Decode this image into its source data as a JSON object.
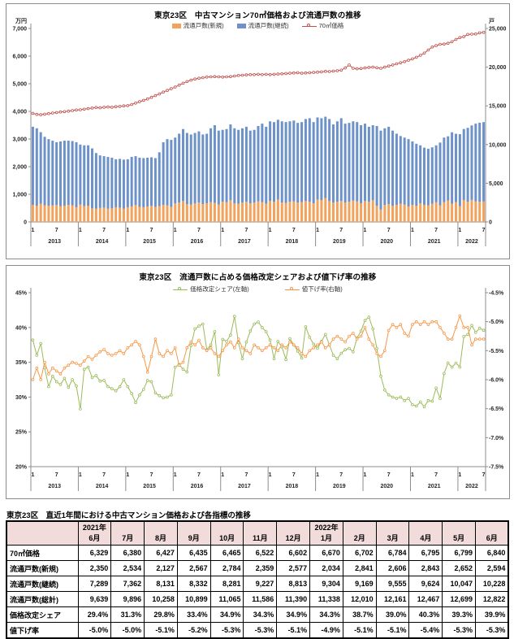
{
  "chart_data": [
    {
      "type": "bar+line",
      "title": "東京23区　中古マンション70㎡価格および流通戸数の推移",
      "grid": false,
      "legend_position": "top",
      "x": {
        "years": [
          "2013",
          "2014",
          "2015",
          "2016",
          "2017",
          "2018",
          "2019",
          "2020",
          "2021",
          "2022"
        ],
        "months_per_year": [
          12,
          12,
          12,
          12,
          12,
          12,
          12,
          12,
          12,
          7
        ],
        "month_tick_labels": [
          "1",
          "7"
        ]
      },
      "left_axis": {
        "title": "万円",
        "min": 0,
        "max": 7000,
        "step": 1000,
        "format": "thousands"
      },
      "right_axis": {
        "title": "戸",
        "min": 0,
        "max": 25000,
        "step": 5000,
        "format": "thousands"
      },
      "series": [
        {
          "name": "流通戸数(新規)",
          "type": "bar",
          "axis": "right",
          "color": "#F2A25B",
          "values": [
            2200,
            2100,
            2350,
            2150,
            2100,
            2150,
            2200,
            2050,
            2100,
            2200,
            2150,
            1900,
            2250,
            2050,
            2100,
            1750,
            1700,
            1800,
            1850,
            1700,
            1750,
            1900,
            1850,
            1700,
            1900,
            2000,
            2200,
            1950,
            1900,
            2000,
            2100,
            1950,
            2050,
            2200,
            2150,
            1950,
            2400,
            2500,
            2700,
            2300,
            2250,
            2400,
            2500,
            2300,
            2400,
            2550,
            2450,
            2250,
            2600,
            2550,
            2800,
            2400,
            2350,
            2500,
            2600,
            2400,
            2500,
            2650,
            2550,
            2350,
            2700,
            2600,
            2900,
            2500,
            2450,
            2600,
            2650,
            2500,
            2550,
            2700,
            2600,
            2400,
            2900,
            2800,
            3100,
            2700,
            2500,
            2600,
            2700,
            2500,
            2600,
            2750,
            2650,
            2400,
            2700,
            2600,
            2800,
            2100,
            1600,
            2200,
            2300,
            2100,
            2200,
            2350,
            2250,
            2000,
            2200,
            2100,
            2400,
            2200,
            2150,
            2350,
            2534,
            2127,
            2567,
            2784,
            2359,
            2577,
            2034,
            2841,
            2606,
            2843,
            2652,
            2594,
            2650
          ]
        },
        {
          "name": "流通戸数(継続)",
          "type": "bar",
          "axis": "right",
          "color": "#6D91C9",
          "values": [
            10100,
            10000,
            9250,
            8850,
            8600,
            8350,
            8100,
            8350,
            8400,
            8300,
            8300,
            8400,
            7750,
            7850,
            7800,
            7750,
            7200,
            6800,
            6650,
            6700,
            6550,
            6200,
            6300,
            6350,
            6200,
            6400,
            6300,
            6350,
            6350,
            6300,
            6250,
            6300,
            6950,
            8100,
            8550,
            8650,
            8500,
            8900,
            9300,
            9200,
            9050,
            9100,
            9200,
            9000,
            9000,
            9550,
            10050,
            9550,
            9300,
            9450,
            9800,
            9700,
            9550,
            9600,
            9700,
            9400,
            9400,
            9750,
            10150,
            9950,
            10300,
            10300,
            10300,
            10500,
            10450,
            10400,
            10450,
            10300,
            10350,
            10600,
            10800,
            10500,
            10600,
            10600,
            10500,
            10600,
            10100,
            10400,
            10700,
            10200,
            10200,
            10250,
            10250,
            10100,
            10000,
            9700,
            9700,
            10300,
            10200,
            9900,
            10000,
            9700,
            9200,
            8750,
            8650,
            8700,
            8200,
            8000,
            7500,
            7400,
            7300,
            7289,
            7362,
            8131,
            8332,
            8281,
            9227,
            8813,
            9304,
            9169,
            9555,
            9624,
            10047,
            10228,
            10250
          ]
        },
        {
          "name": "70㎡価格",
          "type": "line",
          "axis": "left",
          "color": "#C0504D",
          "values": [
            3930,
            3890,
            3880,
            3900,
            3920,
            3940,
            3960,
            3980,
            3990,
            4010,
            4030,
            4050,
            4060,
            4080,
            4100,
            4120,
            4140,
            4130,
            4150,
            4160,
            4150,
            4170,
            4180,
            4200,
            4210,
            4250,
            4300,
            4350,
            4400,
            4450,
            4510,
            4570,
            4630,
            4700,
            4760,
            4820,
            4880,
            4950,
            5020,
            5080,
            5130,
            5170,
            5200,
            5220,
            5240,
            5250,
            5260,
            5250,
            5240,
            5250,
            5260,
            5280,
            5300,
            5310,
            5320,
            5330,
            5330,
            5340,
            5330,
            5340,
            5330,
            5340,
            5350,
            5360,
            5370,
            5380,
            5390,
            5400,
            5380,
            5390,
            5400,
            5410,
            5420,
            5430,
            5450,
            5440,
            5460,
            5470,
            5490,
            5570,
            5680,
            5560,
            5540,
            5550,
            5570,
            5590,
            5600,
            5580,
            5560,
            5600,
            5640,
            5680,
            5720,
            5760,
            5800,
            5850,
            5900,
            5960,
            6030,
            6110,
            6220,
            6329,
            6380,
            6427,
            6435,
            6465,
            6522,
            6602,
            6670,
            6702,
            6784,
            6795,
            6799,
            6840,
            6860
          ]
        }
      ]
    },
    {
      "type": "line",
      "title": "東京23区　流通戸数に占める価格改定シェアおよび値下げ率の推移",
      "grid": false,
      "legend_position": "top",
      "x": {
        "years": [
          "2013",
          "2014",
          "2015",
          "2016",
          "2017",
          "2018",
          "2019",
          "2020",
          "2021",
          "2022"
        ],
        "months_per_year": [
          12,
          12,
          12,
          12,
          12,
          12,
          12,
          12,
          12,
          7
        ],
        "month_tick_labels": [
          "1",
          "7"
        ]
      },
      "left_axis": {
        "title": "",
        "min": 20,
        "max": 45,
        "step": 5,
        "format": "pct0"
      },
      "right_axis": {
        "title": "",
        "min": -7.5,
        "max": -4.5,
        "step": 0.5,
        "format": "pct1"
      },
      "series": [
        {
          "name": "価格改定シェア(左軸)",
          "type": "line",
          "axis": "left",
          "color": "#9BBB59",
          "values": [
            38.2,
            36.0,
            37.7,
            34.2,
            31.5,
            33.0,
            32.2,
            31.8,
            32.7,
            31.4,
            32.5,
            31.6,
            28.3,
            34.0,
            34.3,
            32.8,
            33.1,
            32.3,
            32.4,
            31.5,
            31.2,
            30.9,
            31.5,
            32.5,
            31.5,
            30.5,
            29.2,
            30.3,
            31.1,
            32.4,
            32.2,
            30.6,
            30.2,
            29.9,
            30.0,
            30.3,
            34.3,
            34.7,
            34.0,
            33.6,
            37.4,
            39.8,
            40.2,
            40.5,
            36.8,
            37.5,
            39.4,
            33.2,
            38.3,
            38.0,
            38.9,
            41.6,
            37.8,
            35.5,
            37.9,
            39.5,
            40.5,
            40.8,
            40.0,
            39.4,
            38.2,
            35.5,
            38.0,
            37.2,
            35.4,
            38.4,
            37.5,
            36.6,
            35.6,
            40.1,
            38.6,
            37.6,
            37.0,
            38.0,
            39.0,
            37.5,
            36.0,
            35.5,
            36.3,
            36.8,
            37.0,
            36.5,
            38.5,
            39.5,
            41.0,
            41.5,
            39.8,
            37.0,
            33.0,
            31.0,
            30.3,
            30.0,
            29.8,
            30.0,
            29.5,
            29.8,
            28.9,
            28.7,
            29.3,
            28.6,
            29.5,
            29.4,
            31.3,
            29.8,
            33.4,
            34.9,
            34.3,
            34.9,
            34.3,
            38.7,
            39.0,
            40.3,
            39.3,
            39.9,
            39.6
          ]
        },
        {
          "name": "値下げ率(右軸)",
          "type": "line",
          "axis": "right",
          "color": "#F79646",
          "values": [
            -6.0,
            -5.8,
            -6.0,
            -5.7,
            -5.9,
            -5.8,
            -5.85,
            -5.9,
            -5.8,
            -5.75,
            -5.7,
            -5.72,
            -5.75,
            -5.68,
            -5.6,
            -5.65,
            -5.58,
            -5.52,
            -5.48,
            -5.55,
            -5.58,
            -5.55,
            -5.5,
            -5.55,
            -5.45,
            -5.4,
            -5.34,
            -5.4,
            -5.6,
            -5.87,
            -5.6,
            -5.3,
            -5.55,
            -5.6,
            -5.5,
            -5.55,
            -5.45,
            -5.75,
            -5.7,
            -5.45,
            -5.35,
            -5.4,
            -5.32,
            -5.45,
            -5.5,
            -5.45,
            -5.55,
            -5.6,
            -5.5,
            -5.4,
            -5.35,
            -5.45,
            -5.3,
            -5.45,
            -5.5,
            -5.55,
            -5.4,
            -5.45,
            -5.5,
            -5.45,
            -5.4,
            -5.45,
            -5.5,
            -5.4,
            -5.45,
            -5.35,
            -5.4,
            -5.45,
            -5.55,
            -5.6,
            -5.5,
            -5.45,
            -5.4,
            -5.35,
            -5.45,
            -5.4,
            -5.3,
            -5.25,
            -5.3,
            -5.35,
            -5.25,
            -5.2,
            -5.3,
            -5.25,
            -5.1,
            -5.3,
            -5.4,
            -5.55,
            -5.6,
            -5.5,
            -5.15,
            -5.05,
            -5.1,
            -5.05,
            -5.2,
            -5.25,
            -5.05,
            -5.0,
            -5.05,
            -5.0,
            -5.05,
            -5.0,
            -5.0,
            -5.1,
            -5.2,
            -5.3,
            -5.3,
            -5.1,
            -4.9,
            -5.1,
            -5.1,
            -5.4,
            -5.3,
            -5.3,
            -5.3
          ]
        }
      ]
    }
  ],
  "table": {
    "title": "東京23区　直近1年間における中古マンション価格および各指標の推移",
    "col_headers": [
      {
        "year": "2021年",
        "month": "6月"
      },
      {
        "year": "",
        "month": "7月"
      },
      {
        "year": "",
        "month": "8月"
      },
      {
        "year": "",
        "month": "9月"
      },
      {
        "year": "",
        "month": "10月"
      },
      {
        "year": "",
        "month": "11月"
      },
      {
        "year": "",
        "month": "12月"
      },
      {
        "year": "2022年",
        "month": "1月"
      },
      {
        "year": "",
        "month": "2月"
      },
      {
        "year": "",
        "month": "3月"
      },
      {
        "year": "",
        "month": "4月"
      },
      {
        "year": "",
        "month": "5月"
      },
      {
        "year": "",
        "month": "6月"
      }
    ],
    "rows": [
      {
        "label": "70㎡価格",
        "values": [
          "6,329",
          "6,380",
          "6,427",
          "6,435",
          "6,465",
          "6,522",
          "6,602",
          "6,670",
          "6,702",
          "6,784",
          "6,795",
          "6,799",
          "6,840"
        ]
      },
      {
        "label": "流通戸数(新規)",
        "values": [
          "2,350",
          "2,534",
          "2,127",
          "2,567",
          "2,784",
          "2,359",
          "2,577",
          "2,034",
          "2,841",
          "2,606",
          "2,843",
          "2,652",
          "2,594"
        ]
      },
      {
        "label": "流通戸数(継続)",
        "values": [
          "7,289",
          "7,362",
          "8,131",
          "8,332",
          "8,281",
          "9,227",
          "8,813",
          "9,304",
          "9,169",
          "9,555",
          "9,624",
          "10,047",
          "10,228"
        ]
      },
      {
        "label": "流通戸数(総計)",
        "values": [
          "9,639",
          "9,896",
          "10,258",
          "10,899",
          "11,065",
          "11,586",
          "11,390",
          "11,338",
          "12,010",
          "12,161",
          "12,467",
          "12,699",
          "12,822"
        ]
      },
      {
        "label": "価格改定シェア",
        "values": [
          "29.4%",
          "31.3%",
          "29.8%",
          "33.4%",
          "34.9%",
          "34.3%",
          "34.9%",
          "34.3%",
          "38.7%",
          "39.0%",
          "40.3%",
          "39.3%",
          "39.9%"
        ]
      },
      {
        "label": "値下げ率",
        "values": [
          "-5.0%",
          "-5.0%",
          "-5.1%",
          "-5.2%",
          "-5.3%",
          "-5.3%",
          "-5.1%",
          "-4.9%",
          "-5.1%",
          "-5.1%",
          "-5.4%",
          "-5.3%",
          "-5.3%"
        ]
      }
    ],
    "header_bg": "#f2dcdb"
  }
}
